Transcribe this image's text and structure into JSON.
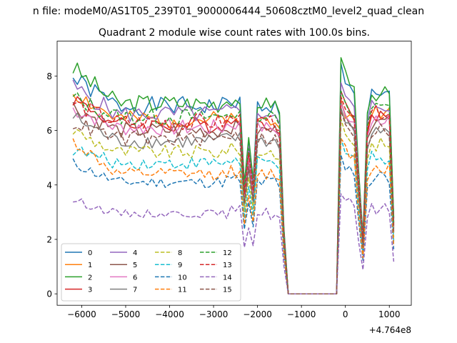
{
  "chart_data": {
    "type": "line",
    "suptitle": "n file: modeM0/AS1T05_239T01_9000006444_50608cztM0_level2_quad_clean",
    "title": "Quadrant 2 module wise count rates with 100.0s bins.",
    "xlabel": "",
    "ylabel": "",
    "x_offset_label": "+4.764e8",
    "xlim": [
      -6560,
      1500
    ],
    "ylim": [
      -0.42,
      9.28
    ],
    "xticks": [
      -6000,
      -5000,
      -4000,
      -3000,
      -2000,
      -1000,
      0,
      1000
    ],
    "xtick_labels": [
      "−6000",
      "−5000",
      "−4000",
      "−3000",
      "−2000",
      "−1000",
      "0",
      "1000"
    ],
    "yticks": [
      0,
      2,
      4,
      6,
      8
    ],
    "ytick_labels": [
      "0",
      "2",
      "4",
      "6",
      "8"
    ],
    "grid": false,
    "legend": {
      "placement": "lower-left",
      "columns": 4
    },
    "x_start": -6200,
    "x_step": 100,
    "x_count": 74,
    "gap_x_range": [
      -1300,
      -200
    ],
    "series": [
      {
        "name": "0",
        "color": "#1f77b4",
        "style": "solid",
        "level": 6.9,
        "start": 7.9,
        "after": 8.3
      },
      {
        "name": "1",
        "color": "#ff7f0e",
        "style": "solid",
        "level": 6.4,
        "start": 7.4,
        "after": 7.0
      },
      {
        "name": "2",
        "color": "#2ca02c",
        "style": "solid",
        "level": 7.0,
        "start": 8.3,
        "after": 8.5
      },
      {
        "name": "3",
        "color": "#d62728",
        "style": "solid",
        "level": 6.2,
        "start": 7.2,
        "after": 7.3
      },
      {
        "name": "4",
        "color": "#9467bd",
        "style": "solid",
        "level": 6.6,
        "start": 7.6,
        "after": 7.6
      },
      {
        "name": "5",
        "color": "#8c564b",
        "style": "solid",
        "level": 6.0,
        "start": 6.9,
        "after": 6.9
      },
      {
        "name": "6",
        "color": "#e377c2",
        "style": "solid",
        "level": 6.1,
        "start": 6.8,
        "after": 6.9
      },
      {
        "name": "7",
        "color": "#7f7f7f",
        "style": "solid",
        "level": 5.6,
        "start": 6.5,
        "after": 6.7
      },
      {
        "name": "8",
        "color": "#bcbd22",
        "style": "dashed",
        "level": 5.2,
        "start": 6.0,
        "after": 6.3
      },
      {
        "name": "9",
        "color": "#17becf",
        "style": "dashed",
        "level": 4.8,
        "start": 5.3,
        "after": 5.6
      },
      {
        "name": "10",
        "color": "#1f77b4",
        "style": "dashed",
        "level": 4.1,
        "start": 4.8,
        "after": 5.0
      },
      {
        "name": "11",
        "color": "#ff7f0e",
        "style": "dashed",
        "level": 4.4,
        "start": 5.6,
        "after": 5.6
      },
      {
        "name": "12",
        "color": "#2ca02c",
        "style": "dashed",
        "level": 6.5,
        "start": 7.2,
        "after": 7.3
      },
      {
        "name": "13",
        "color": "#d62728",
        "style": "dashed",
        "level": 6.3,
        "start": 7.0,
        "after": 7.1
      },
      {
        "name": "14",
        "color": "#9467bd",
        "style": "dashed",
        "level": 2.95,
        "start": 3.45,
        "after": 3.6
      },
      {
        "name": "15",
        "color": "#8c564b",
        "style": "dashed",
        "level": 5.7,
        "start": 6.3,
        "after": 6.6
      }
    ]
  }
}
